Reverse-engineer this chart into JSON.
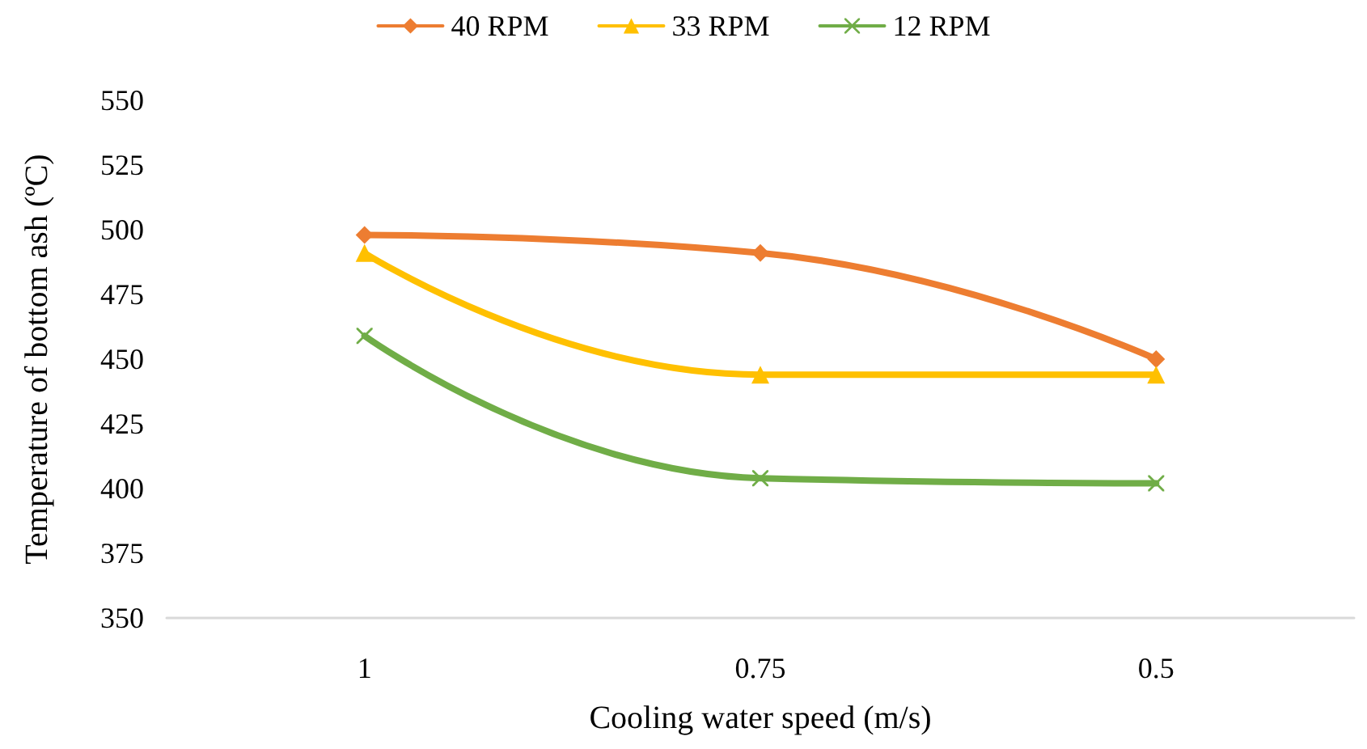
{
  "chart_data": {
    "type": "line",
    "xlabel": "Cooling water speed (m/s)",
    "ylabel": "Temperature of bottom ash (ºC)",
    "categories": [
      "1",
      "0.75",
      "0.5"
    ],
    "series": [
      {
        "name": "40 RPM",
        "color": "#ed7d31",
        "marker": "diamond",
        "values": [
          498,
          491,
          450
        ]
      },
      {
        "name": "33 RPM",
        "color": "#ffc000",
        "marker": "triangle",
        "values": [
          491,
          444,
          444
        ]
      },
      {
        "name": "12 RPM",
        "color": "#70ad47",
        "marker": "cross",
        "values": [
          459,
          404,
          402
        ]
      }
    ],
    "ylim": [
      350,
      550
    ],
    "yticks": [
      350,
      375,
      400,
      425,
      450,
      475,
      500,
      525,
      550
    ],
    "grid": false,
    "legend": "top"
  }
}
